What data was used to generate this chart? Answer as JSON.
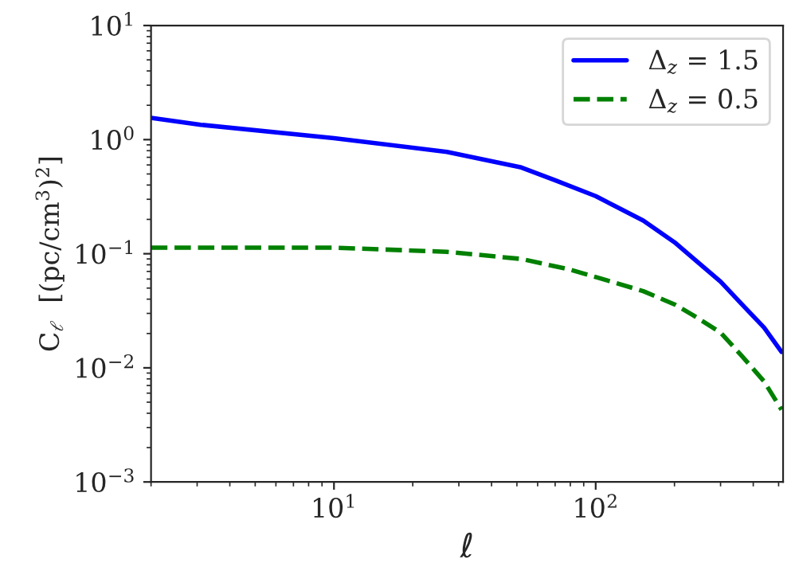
{
  "chart_data": {
    "type": "line",
    "xlabel": "ℓ",
    "ylabel": "C$_{ℓ}$  [(pc/cm$^{3}$)$^{2}$]",
    "log": "xy",
    "grid": false,
    "legend": "top right",
    "xlim": [
      2,
      520
    ],
    "ylim": [
      0.001,
      10
    ],
    "xticks": [
      {
        "value": 10,
        "label": "10$^{1}$"
      },
      {
        "value": 100,
        "label": "10$^{2}$"
      }
    ],
    "yticks": [
      {
        "value": 0.001,
        "label": "10$^{−3}$"
      },
      {
        "value": 0.01,
        "label": "10$^{−2}$"
      },
      {
        "value": 0.1,
        "label": "10$^{−1}$"
      },
      {
        "value": 1,
        "label": "10$^{0}$"
      },
      {
        "value": 10,
        "label": "10$^{1}$"
      }
    ],
    "series": [
      {
        "name": "Δ$_{z}$ = 1.5",
        "color": "#0000ff",
        "line_style": "solid",
        "x": [
          2,
          3.1,
          10,
          27,
          52,
          70,
          100,
          152,
          200,
          235,
          300,
          362,
          440,
          513
        ],
        "values": [
          1.55,
          1.35,
          1.03,
          0.78,
          0.57,
          0.44,
          0.32,
          0.195,
          0.126,
          0.092,
          0.057,
          0.036,
          0.0225,
          0.0138
        ]
      },
      {
        "name": "Δ$_{z}$ = 0.5",
        "color": "#008000",
        "line_style": "dashed",
        "x": [
          2,
          10,
          27,
          52,
          79,
          100,
          152,
          200,
          235,
          300,
          362,
          440,
          513
        ],
        "values": [
          0.113,
          0.113,
          0.104,
          0.09,
          0.073,
          0.0625,
          0.047,
          0.036,
          0.029,
          0.0204,
          0.0127,
          0.0076,
          0.0043
        ]
      }
    ]
  }
}
